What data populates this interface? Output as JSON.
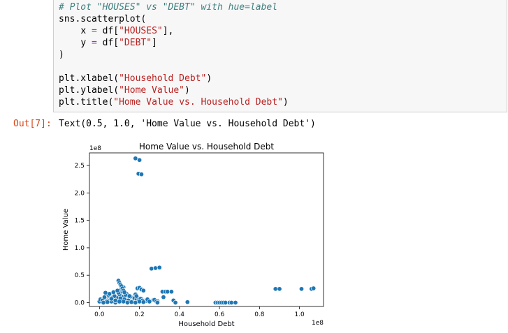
{
  "code": {
    "comment": "# Plot \"HOUSES\" vs \"DEBT\" with hue=label",
    "line2": "sns.scatterplot(",
    "x_key": "x",
    "x_val": "df[",
    "x_str": "\"HOUSES\"",
    "x_end": "],",
    "y_key": "y",
    "y_val": "df[",
    "y_str": "\"DEBT\"",
    "y_end": "]",
    "close": ")",
    "xlabel_fn": "plt.xlabel(",
    "xlabel_str": "\"Household Debt\"",
    "ylabel_fn": "plt.ylabel(",
    "ylabel_str": "\"Home Value\"",
    "title_fn": "plt.title(",
    "title_str": "\"Home Value vs. Household Debt\"",
    "paren": ")"
  },
  "output": {
    "prompt": "Out[7]:",
    "text": "Text(0.5, 1.0, 'Home Value vs. Household Debt')"
  },
  "chart_data": {
    "type": "scatter",
    "title": "Home Value vs. Household Debt",
    "xlabel": "Household Debt",
    "ylabel": "Home Value",
    "x_scale_label": "1e8",
    "y_scale_label": "1e8",
    "xlim": [
      -0.05,
      1.12
    ],
    "ylim": [
      -0.07,
      2.73
    ],
    "x_ticks": [
      0.0,
      0.2,
      0.4,
      0.6,
      0.8,
      1.0
    ],
    "x_tick_labels": [
      "0.0",
      "0.2",
      "0.4",
      "0.6",
      "0.8",
      "1.0"
    ],
    "y_ticks": [
      0.0,
      0.5,
      1.0,
      1.5,
      2.0,
      2.5
    ],
    "y_tick_labels": [
      "0.0",
      "0.5",
      "1.0",
      "1.5",
      "2.0",
      "2.5"
    ],
    "grid": false,
    "color": "#1f77b4",
    "points": {
      "x": [
        0.0,
        0.01,
        0.02,
        0.03,
        0.04,
        0.05,
        0.06,
        0.07,
        0.08,
        0.09,
        0.1,
        0.11,
        0.12,
        0.13,
        0.14,
        0.15,
        0.16,
        0.17,
        0.18,
        0.19,
        0.2,
        0.21,
        0.22,
        0.23,
        0.24,
        0.25,
        0.005,
        0.015,
        0.025,
        0.035,
        0.045,
        0.055,
        0.065,
        0.075,
        0.085,
        0.095,
        0.105,
        0.115,
        0.125,
        0.135,
        0.145,
        0.155,
        0.165,
        0.175,
        0.185,
        0.195,
        0.205,
        0.215,
        0.02,
        0.04,
        0.06,
        0.08,
        0.1,
        0.12,
        0.14,
        0.16,
        0.18,
        0.2,
        0.22,
        0.05,
        0.07,
        0.09,
        0.11,
        0.13,
        0.15,
        0.03,
        0.06,
        0.08,
        0.1,
        0.12,
        0.095,
        0.1,
        0.105,
        0.11,
        0.115,
        0.12,
        0.125,
        0.19,
        0.2,
        0.21,
        0.22,
        0.18,
        0.185,
        0.26,
        0.28,
        0.3,
        0.32,
        0.27,
        0.29,
        0.315,
        0.33,
        0.34,
        0.36,
        0.37,
        0.38,
        0.44,
        0.58,
        0.59,
        0.6,
        0.61,
        0.62,
        0.63,
        0.65,
        0.66,
        0.68,
        0.88,
        0.9,
        1.01,
        1.06,
        1.07,
        0.275,
        0.285,
        0.29,
        0.18,
        0.2,
        0.195,
        0.21
      ],
      "y": [
        0.02,
        0.05,
        0.03,
        0.08,
        0.04,
        0.12,
        0.06,
        0.1,
        0.05,
        0.09,
        0.15,
        0.07,
        0.11,
        0.05,
        0.13,
        0.08,
        0.1,
        0.04,
        0.06,
        0.09,
        0.05,
        0.07,
        0.04,
        0.03,
        0.06,
        0.02,
        0.06,
        0.04,
        0.1,
        0.02,
        0.14,
        0.05,
        0.09,
        0.12,
        0.03,
        0.18,
        0.08,
        0.2,
        0.06,
        0.16,
        0.04,
        0.11,
        0.02,
        0.08,
        0.05,
        0.03,
        0.07,
        0.04,
        0.0,
        0.01,
        0.02,
        0.0,
        0.01,
        0.02,
        0.0,
        0.01,
        0.0,
        0.02,
        0.01,
        0.16,
        0.19,
        0.22,
        0.25,
        0.14,
        0.12,
        0.18,
        0.07,
        0.04,
        0.02,
        0.28,
        0.4,
        0.36,
        0.33,
        0.3,
        0.26,
        0.22,
        0.19,
        0.26,
        0.27,
        0.24,
        0.22,
        0.15,
        0.12,
        0.62,
        0.63,
        0.64,
        0.1,
        0.05,
        0.03,
        0.2,
        0.2,
        0.2,
        0.2,
        0.04,
        0.0,
        0.01,
        0.0,
        0.0,
        0.0,
        0.0,
        0.0,
        0.0,
        0.0,
        0.0,
        0.0,
        0.25,
        0.25,
        0.25,
        0.25,
        0.26,
        0.05,
        0.02,
        0.0,
        2.63,
        2.6,
        2.35,
        2.34
      ]
    }
  }
}
